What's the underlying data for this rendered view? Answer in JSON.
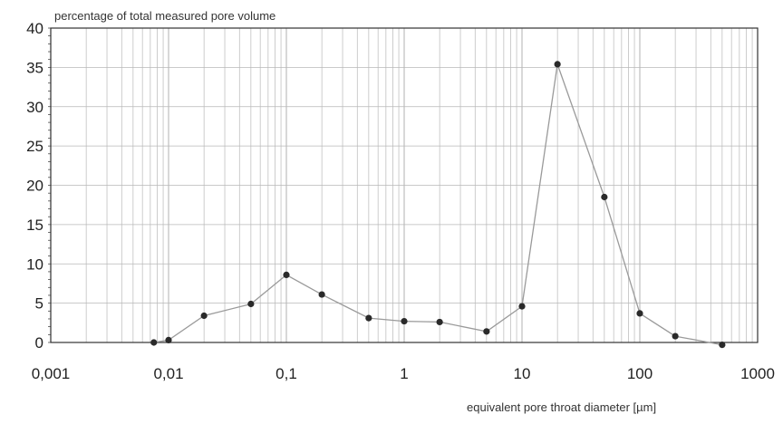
{
  "chart_data": {
    "type": "line",
    "xscale": "log",
    "xlim": [
      0.001,
      1000
    ],
    "ylim": [
      0,
      40
    ],
    "ylabel": "percentage of total measured pore volume",
    "xlabel": "equivalent pore throat diameter [µm]",
    "grid": true,
    "x_tick_labels": [
      "0,001",
      "0,01",
      "0,1",
      "1",
      "10",
      "100",
      "1000"
    ],
    "y_tick_labels": [
      "0",
      "5",
      "10",
      "15",
      "20",
      "25",
      "30",
      "35",
      "40"
    ],
    "series": [
      {
        "x": [
          0.0075,
          0.01,
          0.02,
          0.05,
          0.1,
          0.2,
          0.5,
          1,
          2,
          5,
          10,
          20,
          50,
          100,
          200,
          500
        ],
        "y": [
          0.0,
          0.3,
          3.4,
          4.9,
          8.6,
          6.1,
          3.1,
          2.7,
          2.6,
          1.4,
          4.6,
          35.4,
          18.5,
          3.7,
          0.8,
          -0.3
        ]
      }
    ],
    "colors": {
      "line": "#9a9a9a",
      "marker": "#2a2a2a",
      "grid": "#b8b8b8",
      "axis": "#333333"
    }
  }
}
